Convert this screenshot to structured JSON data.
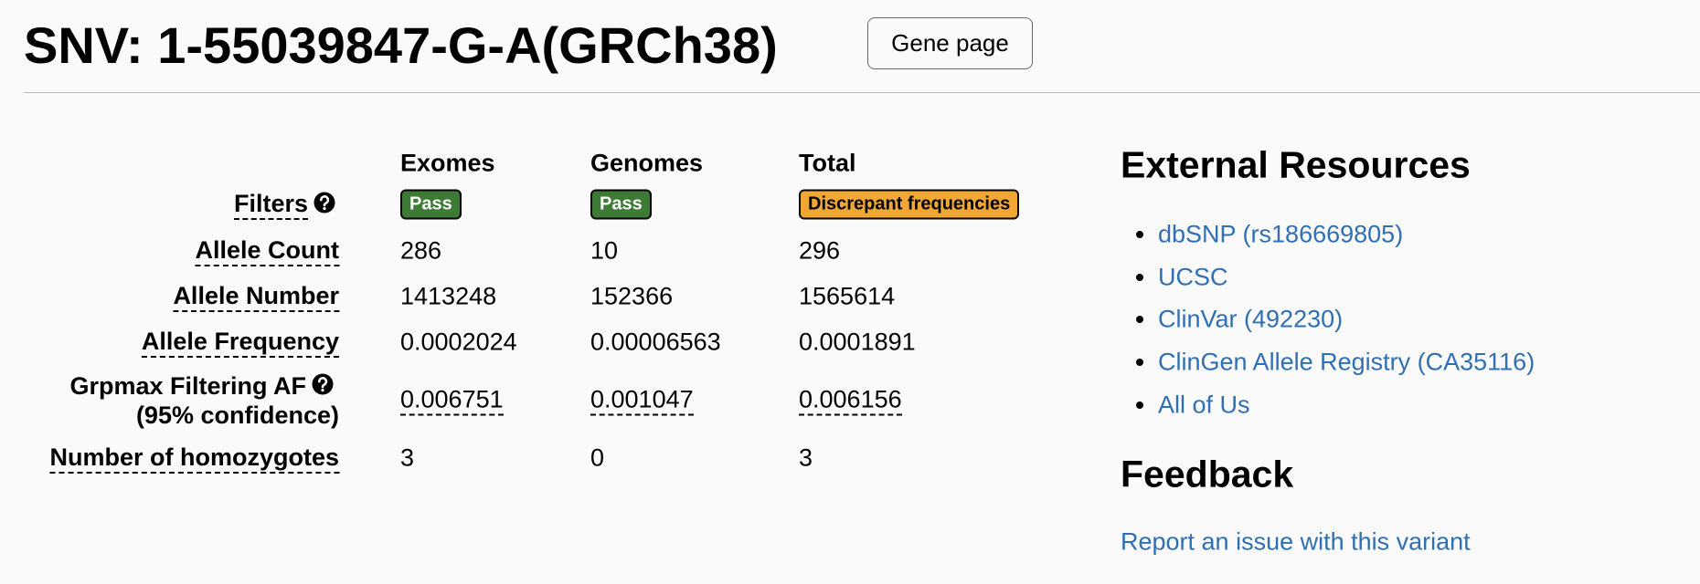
{
  "header": {
    "title": "SNV: 1-55039847-G-A(GRCh38)",
    "button": "Gene page"
  },
  "table": {
    "columns": [
      "Exomes",
      "Genomes",
      "Total"
    ],
    "filters": {
      "label": "Filters",
      "badges": [
        "Pass",
        "Pass",
        "Discrepant frequencies"
      ]
    },
    "rows": [
      {
        "label": "Allele Count",
        "values": [
          "286",
          "10",
          "296"
        ]
      },
      {
        "label": "Allele Number",
        "values": [
          "1413248",
          "152366",
          "1565614"
        ]
      },
      {
        "label": "Allele Frequency",
        "values": [
          "0.0002024",
          "0.00006563",
          "0.0001891"
        ]
      },
      {
        "label": "Grpmax Filtering AF",
        "sublabel": "(95% confidence)",
        "values": [
          "0.006751",
          "0.001047",
          "0.006156"
        ]
      },
      {
        "label": "Number of homozygotes",
        "values": [
          "3",
          "0",
          "3"
        ]
      }
    ]
  },
  "external_resources": {
    "heading": "External Resources",
    "links": [
      "dbSNP (rs186669805)",
      "UCSC",
      "ClinVar (492230)",
      "ClinGen Allele Registry (CA35116)",
      "All of Us"
    ]
  },
  "feedback": {
    "heading": "Feedback",
    "link": "Report an issue with this variant"
  }
}
